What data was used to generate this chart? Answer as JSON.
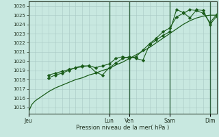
{
  "xlabel": "Pression niveau de la mer( hPa )",
  "ylim": [
    1014.3,
    1026.5
  ],
  "yticks": [
    1015,
    1016,
    1017,
    1018,
    1019,
    1020,
    1021,
    1022,
    1023,
    1024,
    1025,
    1026
  ],
  "bg_color": "#c8e8e0",
  "grid_color_minor": "#b0ccc8",
  "grid_color_major": "#88aaaa",
  "line_color": "#1a5c1a",
  "day_labels": [
    "Jeu",
    "Lun",
    "Ven",
    "Sam",
    "Dim"
  ],
  "day_positions": [
    0,
    12,
    15,
    21,
    27
  ],
  "xlim": [
    0,
    28
  ],
  "series1_x": [
    0,
    0.5,
    1,
    2,
    3,
    4,
    5,
    6,
    7,
    8,
    9,
    10,
    11,
    12,
    13,
    14,
    15,
    16,
    17,
    18,
    19,
    20,
    21,
    22,
    23,
    24,
    25,
    26,
    27,
    28
  ],
  "series1_y": [
    1014.5,
    1015.3,
    1015.7,
    1016.2,
    1016.7,
    1017.1,
    1017.4,
    1017.7,
    1018.0,
    1018.2,
    1018.5,
    1018.7,
    1019.0,
    1019.2,
    1019.6,
    1019.9,
    1020.3,
    1020.7,
    1021.1,
    1021.5,
    1022.0,
    1022.5,
    1023.0,
    1023.5,
    1024.0,
    1024.4,
    1024.7,
    1024.9,
    1025.0,
    1025.0
  ],
  "series2_x": [
    3,
    4,
    5,
    6,
    7,
    8,
    9,
    10,
    11,
    12,
    13,
    14,
    15,
    16,
    17,
    18,
    19,
    20,
    21,
    22,
    23,
    24,
    25,
    26,
    27,
    28
  ],
  "series2_y": [
    1018.2,
    1018.5,
    1018.7,
    1019.0,
    1019.3,
    1019.4,
    1019.5,
    1018.8,
    1018.5,
    1019.3,
    1019.8,
    1020.3,
    1020.5,
    1020.3,
    1020.1,
    1021.8,
    1022.3,
    1022.8,
    1023.2,
    1025.6,
    1025.3,
    1024.7,
    1025.6,
    1025.5,
    1024.0,
    1024.9
  ],
  "series3_x": [
    3,
    4,
    5,
    6,
    7,
    8,
    9,
    10,
    11,
    12,
    13,
    14,
    15,
    16,
    17,
    18,
    19,
    20,
    21,
    22,
    23,
    24,
    25,
    26,
    27,
    28
  ],
  "series3_y": [
    1018.5,
    1018.7,
    1018.9,
    1019.1,
    1019.3,
    1019.5,
    1019.5,
    1019.3,
    1019.5,
    1019.7,
    1020.3,
    1020.5,
    1020.3,
    1020.5,
    1021.2,
    1021.9,
    1022.5,
    1023.2,
    1023.6,
    1024.8,
    1025.2,
    1025.6,
    1025.5,
    1025.2,
    1024.2,
    1025.1
  ]
}
